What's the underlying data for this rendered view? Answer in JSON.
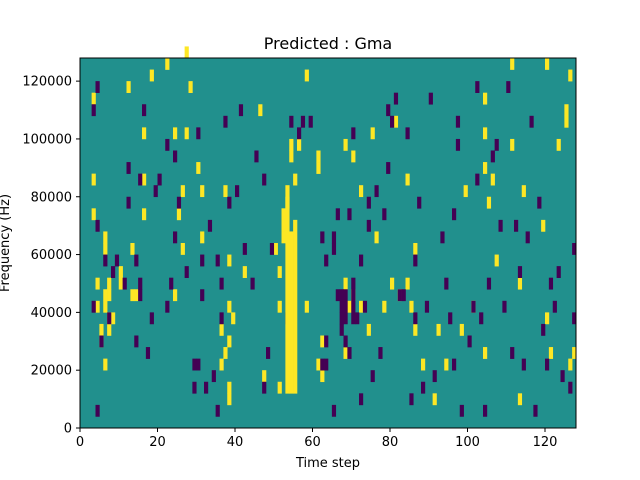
{
  "chart_data": {
    "type": "heatmap",
    "title": "Predicted : Gma",
    "xlabel": "Time step",
    "ylabel": "Frequency (Hz)",
    "xlim": [
      0,
      128
    ],
    "ylim": [
      0,
      128000
    ],
    "x_ticks": [
      0,
      20,
      40,
      60,
      80,
      100,
      120
    ],
    "y_ticks": [
      0,
      20000,
      40000,
      60000,
      80000,
      100000,
      120000
    ],
    "x_tick_labels": [
      "0",
      "20",
      "40",
      "60",
      "80",
      "100",
      "120"
    ],
    "y_tick_labels": [
      "0",
      "20000",
      "40000",
      "60000",
      "80000",
      "100000",
      "120000"
    ],
    "grid": false,
    "colormap": "viridis",
    "colors": {
      "background": "#21908d",
      "low": "#440154",
      "high": "#fde725"
    },
    "freq_bin_hz": 4000,
    "cells_high": [
      [
        3,
        21
      ],
      [
        3,
        18
      ],
      [
        3,
        28
      ],
      [
        4,
        10
      ],
      [
        4,
        12
      ],
      [
        5,
        8
      ],
      [
        5,
        7
      ],
      [
        6,
        5
      ],
      [
        6,
        15
      ],
      [
        6,
        16
      ],
      [
        7,
        12
      ],
      [
        7,
        11
      ],
      [
        6,
        11
      ],
      [
        6,
        10
      ],
      [
        7,
        9
      ],
      [
        7,
        8
      ],
      [
        8,
        9
      ],
      [
        10,
        13
      ],
      [
        10,
        12
      ],
      [
        12,
        29
      ],
      [
        13,
        15
      ],
      [
        13,
        11
      ],
      [
        14,
        11
      ],
      [
        16,
        18
      ],
      [
        16,
        25
      ],
      [
        16,
        21
      ],
      [
        18,
        30
      ],
      [
        22,
        31
      ],
      [
        24,
        25
      ],
      [
        24,
        11
      ],
      [
        25,
        18
      ],
      [
        26,
        20
      ],
      [
        26,
        15
      ],
      [
        27,
        25
      ],
      [
        27,
        32
      ],
      [
        28,
        29
      ],
      [
        30,
        22
      ],
      [
        31,
        20
      ],
      [
        31,
        16
      ],
      [
        36,
        8
      ],
      [
        36,
        5
      ],
      [
        37,
        6
      ],
      [
        37,
        20
      ],
      [
        38,
        3
      ],
      [
        38,
        2
      ],
      [
        38,
        10
      ],
      [
        38,
        7
      ],
      [
        38,
        14
      ],
      [
        39,
        9
      ],
      [
        42,
        13
      ],
      [
        46,
        27
      ],
      [
        47,
        4
      ],
      [
        50,
        15
      ],
      [
        51,
        3
      ],
      [
        51,
        10
      ],
      [
        51,
        13
      ],
      [
        52,
        16
      ],
      [
        52,
        17
      ],
      [
        52,
        18
      ],
      [
        54,
        23
      ],
      [
        54,
        24
      ],
      [
        53,
        19
      ],
      [
        55,
        21
      ],
      [
        56,
        24
      ],
      [
        58,
        30
      ],
      [
        58,
        10
      ],
      [
        61,
        5
      ],
      [
        61,
        23
      ],
      [
        61,
        22
      ],
      [
        62,
        4
      ],
      [
        62,
        7
      ],
      [
        68,
        24
      ],
      [
        68,
        6
      ],
      [
        68,
        12
      ],
      [
        69,
        10
      ],
      [
        70,
        11
      ],
      [
        70,
        23
      ],
      [
        72,
        20
      ],
      [
        72,
        10
      ],
      [
        74,
        8
      ],
      [
        75,
        25
      ],
      [
        76,
        16
      ],
      [
        78,
        10
      ],
      [
        80,
        12
      ],
      [
        81,
        26
      ],
      [
        82,
        11
      ],
      [
        84,
        12
      ],
      [
        84,
        21
      ],
      [
        85,
        10
      ],
      [
        86,
        8
      ],
      [
        86,
        15
      ],
      [
        88,
        5
      ],
      [
        91,
        2
      ],
      [
        92,
        8
      ],
      [
        94,
        5
      ],
      [
        98,
        8
      ],
      [
        99,
        20
      ],
      [
        101,
        10
      ],
      [
        104,
        6
      ],
      [
        104,
        22
      ],
      [
        104,
        28
      ],
      [
        104,
        25
      ],
      [
        105,
        19
      ],
      [
        106,
        21
      ],
      [
        107,
        14
      ],
      [
        111,
        24
      ],
      [
        111,
        31
      ],
      [
        113,
        12
      ],
      [
        113,
        2
      ],
      [
        114,
        20
      ],
      [
        119,
        17
      ],
      [
        120,
        31
      ],
      [
        120,
        9
      ],
      [
        121,
        6
      ],
      [
        123,
        24
      ],
      [
        125,
        26
      ],
      [
        125,
        27
      ],
      [
        126,
        5
      ],
      [
        126,
        30
      ],
      [
        127,
        6
      ]
    ],
    "cells_low": [
      [
        3,
        10
      ],
      [
        3,
        27
      ],
      [
        4,
        1
      ],
      [
        4,
        29
      ],
      [
        4,
        17
      ],
      [
        5,
        7
      ],
      [
        6,
        14
      ],
      [
        7,
        9
      ],
      [
        8,
        13
      ],
      [
        9,
        14
      ],
      [
        11,
        12
      ],
      [
        12,
        19
      ],
      [
        12,
        22
      ],
      [
        14,
        14
      ],
      [
        14,
        7
      ],
      [
        15,
        11
      ],
      [
        15,
        21
      ],
      [
        15,
        12
      ],
      [
        16,
        27
      ],
      [
        17,
        6
      ],
      [
        18,
        9
      ],
      [
        19,
        20
      ],
      [
        20,
        21
      ],
      [
        22,
        10
      ],
      [
        22,
        24
      ],
      [
        23,
        12
      ],
      [
        24,
        16
      ],
      [
        24,
        23
      ],
      [
        25,
        19
      ],
      [
        27,
        13
      ],
      [
        29,
        3
      ],
      [
        29,
        5
      ],
      [
        30,
        5
      ],
      [
        30,
        25
      ],
      [
        31,
        14
      ],
      [
        31,
        11
      ],
      [
        32,
        3
      ],
      [
        33,
        17
      ],
      [
        34,
        4
      ],
      [
        35,
        1
      ],
      [
        35,
        14
      ],
      [
        36,
        9
      ],
      [
        36,
        12
      ],
      [
        37,
        26
      ],
      [
        38,
        19
      ],
      [
        40,
        20
      ],
      [
        41,
        27
      ],
      [
        42,
        15
      ],
      [
        44,
        12
      ],
      [
        45,
        23
      ],
      [
        47,
        21
      ],
      [
        47,
        3
      ],
      [
        48,
        6
      ],
      [
        49,
        15
      ],
      [
        53,
        9
      ],
      [
        54,
        26
      ],
      [
        56,
        25
      ],
      [
        57,
        26
      ],
      [
        59,
        26
      ],
      [
        62,
        5
      ],
      [
        62,
        16
      ],
      [
        63,
        5
      ],
      [
        63,
        14
      ],
      [
        63,
        7
      ],
      [
        65,
        1
      ],
      [
        65,
        16
      ],
      [
        65,
        15
      ],
      [
        66,
        11
      ],
      [
        66,
        18
      ],
      [
        67,
        8
      ],
      [
        67,
        9
      ],
      [
        67,
        10
      ],
      [
        67,
        11
      ],
      [
        68,
        7
      ],
      [
        69,
        6
      ],
      [
        69,
        18
      ],
      [
        70,
        25
      ],
      [
        71,
        9
      ],
      [
        72,
        2
      ],
      [
        72,
        14
      ],
      [
        73,
        10
      ],
      [
        74,
        19
      ],
      [
        74,
        17
      ],
      [
        75,
        4
      ],
      [
        76,
        20
      ],
      [
        77,
        6
      ],
      [
        78,
        18
      ],
      [
        79,
        22
      ],
      [
        79,
        27
      ],
      [
        80,
        26
      ],
      [
        81,
        28
      ],
      [
        82,
        11
      ],
      [
        83,
        11
      ],
      [
        84,
        25
      ],
      [
        85,
        2
      ],
      [
        86,
        14
      ],
      [
        86,
        9
      ],
      [
        87,
        19
      ],
      [
        88,
        3
      ],
      [
        89,
        10
      ],
      [
        90,
        28
      ],
      [
        91,
        4
      ],
      [
        93,
        16
      ],
      [
        94,
        12
      ],
      [
        95,
        9
      ],
      [
        96,
        18
      ],
      [
        96,
        5
      ],
      [
        97,
        24
      ],
      [
        97,
        26
      ],
      [
        98,
        1
      ],
      [
        100,
        7
      ],
      [
        101,
        10
      ],
      [
        102,
        21
      ],
      [
        102,
        29
      ],
      [
        103,
        9
      ],
      [
        104,
        1
      ],
      [
        105,
        12
      ],
      [
        106,
        23
      ],
      [
        107,
        24
      ],
      [
        108,
        17
      ],
      [
        109,
        10
      ],
      [
        110,
        29
      ],
      [
        111,
        6
      ],
      [
        112,
        17
      ],
      [
        113,
        13
      ],
      [
        114,
        5
      ],
      [
        115,
        16
      ],
      [
        116,
        26
      ],
      [
        117,
        1
      ],
      [
        118,
        19
      ],
      [
        119,
        8
      ],
      [
        120,
        5
      ],
      [
        121,
        12
      ],
      [
        122,
        10
      ],
      [
        123,
        13
      ],
      [
        124,
        4
      ],
      [
        126,
        3
      ],
      [
        127,
        15
      ],
      [
        127,
        9
      ]
    ],
    "bands_high": [
      {
        "x": 53,
        "from_bin": 3,
        "to_bin": 20
      },
      {
        "x": 54,
        "from_bin": 3,
        "to_bin": 16
      },
      {
        "x": 55,
        "from_bin": 3,
        "to_bin": 17
      }
    ],
    "bands_low": [
      {
        "x": 68,
        "from_bin": 9,
        "to_bin": 11
      },
      {
        "x": 70,
        "from_bin": 9,
        "to_bin": 12
      }
    ]
  }
}
